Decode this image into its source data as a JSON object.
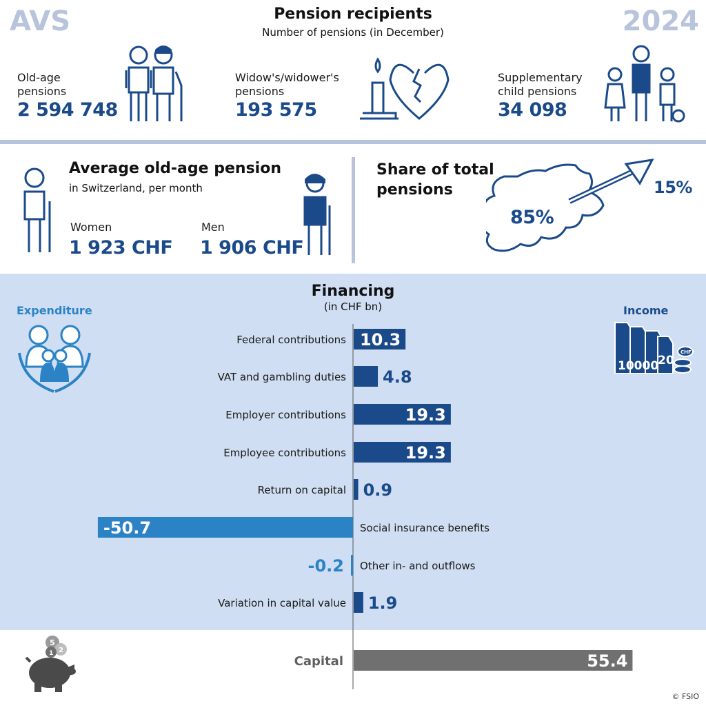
{
  "header": {
    "left_tag": "AVS",
    "right_tag": "2024",
    "title": "Pension recipients",
    "subtitle": "Number of pensions (in December)"
  },
  "recipients": [
    {
      "label_line1": "Old-age",
      "label_line2": "pensions",
      "value": "2 594 748"
    },
    {
      "label_line1": "Widow's/widower's",
      "label_line2": "pensions",
      "value": "193 575"
    },
    {
      "label_line1": "Supplementary",
      "label_line2": "child pensions",
      "value": "34 098"
    }
  ],
  "average": {
    "title": "Average old-age pension",
    "subtitle": "in Switzerland, per month",
    "women_label": "Women",
    "women_value": "1 923 CHF",
    "men_label": "Men",
    "men_value": "1 906 CHF"
  },
  "share": {
    "title_line1": "Share of total",
    "title_line2": "pensions",
    "domestic": "85%",
    "abroad": "15%"
  },
  "financing": {
    "title": "Financing",
    "subtitle": "(in CHF bn)",
    "expenditure_label": "Expenditure",
    "income_label": "Income",
    "income_icon_text": "10000",
    "income_icon_text2": "20",
    "coin_text": "CHF",
    "capital_label": "Capital",
    "piggy_coin_a": "5",
    "piggy_coin_b": "1",
    "piggy_coin_c": "2"
  },
  "chart_data": {
    "type": "bar",
    "orientation": "horizontal",
    "unit": "CHF bn",
    "categories": [
      "Federal contributions",
      "VAT and gambling duties",
      "Employer contributions",
      "Employee contributions",
      "Return on capital",
      "Social insurance benefits",
      "Other in- and outflows",
      "Variation in capital value"
    ],
    "values": [
      10.3,
      4.8,
      19.3,
      19.3,
      0.9,
      -50.7,
      -0.2,
      1.9
    ],
    "value_labels": [
      "10.3",
      "4.8",
      "19.3",
      "19.3",
      "0.9",
      "-50.7",
      "-0.2",
      "1.9"
    ],
    "capital": {
      "label": "Capital",
      "value": 55.4,
      "value_label": "55.4"
    },
    "colors": {
      "positive": "#1a4a8a",
      "negative": "#2b83c6",
      "capital": "#707070"
    }
  },
  "footer": {
    "credit": "© FSIO"
  }
}
